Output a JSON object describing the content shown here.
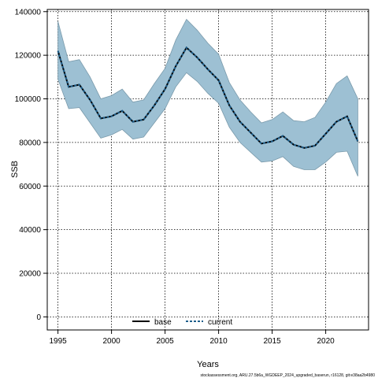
{
  "chart_data": {
    "type": "line",
    "xlabel": "Years",
    "ylabel": "SSB",
    "xlim": [
      1994,
      2024
    ],
    "ylim": [
      -6000,
      141000
    ],
    "xticks": [
      1995,
      2000,
      2005,
      2010,
      2015,
      2020
    ],
    "yticks": [
      0,
      20000,
      40000,
      60000,
      80000,
      100000,
      120000,
      140000
    ],
    "grid": true,
    "legend_position": "bottom-center",
    "colors": {
      "band_fill": "#9dc0d3",
      "band_edge": "#7a9aab",
      "base_line": "#000000",
      "current_line": "#1f5f8b"
    },
    "x": [
      1995,
      1996,
      1997,
      1998,
      1999,
      2000,
      2001,
      2002,
      2003,
      2004,
      2005,
      2006,
      2007,
      2008,
      2009,
      2010,
      2011,
      2012,
      2013,
      2014,
      2015,
      2016,
      2017,
      2018,
      2019,
      2020,
      2021,
      2022,
      2023
    ],
    "band_upper": [
      135500,
      117000,
      118000,
      110000,
      100000,
      101500,
      104500,
      98500,
      99500,
      107000,
      114000,
      127000,
      136500,
      131500,
      125500,
      120500,
      107500,
      99500,
      94000,
      89000,
      90500,
      94000,
      90000,
      89500,
      91500,
      98500,
      107000,
      110500,
      100000
    ],
    "band_lower": [
      109000,
      95500,
      96000,
      89000,
      82000,
      83500,
      86000,
      81500,
      82500,
      89000,
      95500,
      105500,
      112000,
      108000,
      102500,
      98000,
      87000,
      80000,
      75500,
      71000,
      71500,
      73500,
      69000,
      67500,
      67500,
      71000,
      75500,
      76000,
      64500
    ],
    "series": [
      {
        "name": "base",
        "style": "solid",
        "values": [
          122000,
          105500,
          106500,
          99500,
          91000,
          92000,
          94500,
          89500,
          90500,
          97000,
          104500,
          115000,
          123500,
          119000,
          113500,
          108500,
          97000,
          89500,
          84500,
          79500,
          80500,
          83000,
          79000,
          77500,
          78500,
          84000,
          89500,
          92000,
          80500
        ]
      },
      {
        "name": "current",
        "style": "dashed",
        "values": [
          122000,
          105500,
          106500,
          99500,
          91000,
          92000,
          94500,
          89500,
          90500,
          97000,
          104500,
          115000,
          123500,
          119000,
          113500,
          108500,
          97000,
          89500,
          84500,
          79500,
          80500,
          83000,
          79000,
          77500,
          78500,
          84000,
          89500,
          92000,
          80500
        ]
      }
    ],
    "legend": {
      "base_label": "base",
      "current_label": "current"
    },
    "source_note": "stockassessment.org, ARU.27.5b6a_WGDEEP_2024_upgraded_baserun, r16128, git:e38aa2b4980"
  }
}
